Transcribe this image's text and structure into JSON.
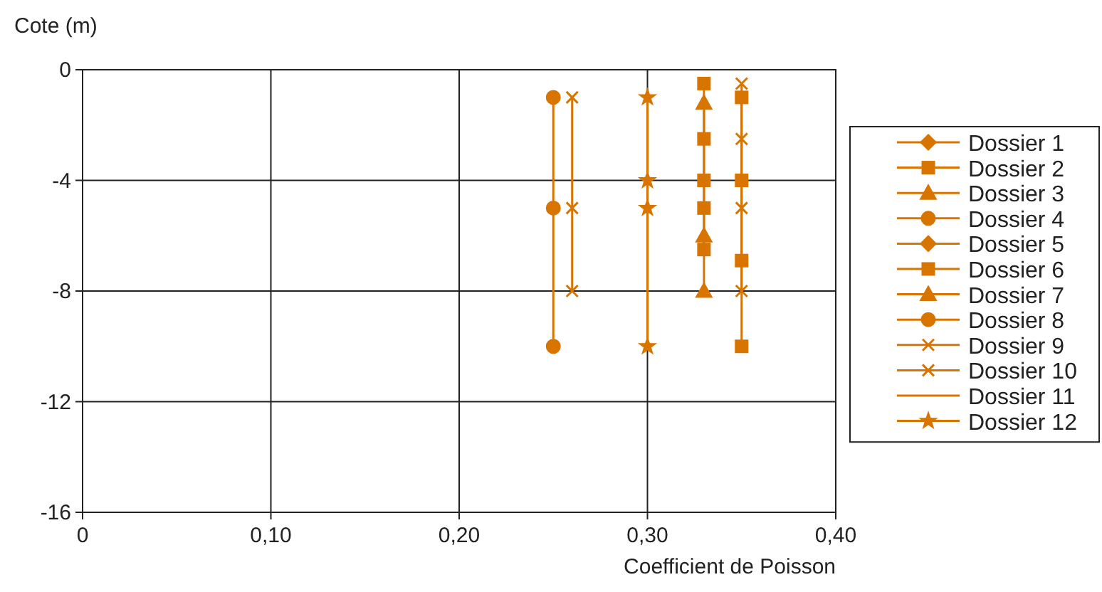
{
  "chart_data": {
    "type": "line",
    "xlabel": "Coefficient de Poisson",
    "ylabel": "Cote (m)",
    "xlim": [
      0,
      0.4
    ],
    "xticks": [
      0,
      {
        "value": 0.1,
        "label": "0,10"
      },
      {
        "value": 0.2,
        "label": "0,20"
      },
      {
        "value": 0.3,
        "label": "0,30"
      },
      {
        "value": 0.4,
        "label": "0,40"
      }
    ],
    "ylim": [
      -16,
      0
    ],
    "yticks": [
      -16,
      -12,
      -8,
      -4,
      0
    ],
    "grid": true,
    "legend": "right",
    "series": [
      {
        "name": "Dossier 1",
        "color": "#d87400",
        "marker": "diamond"
      },
      {
        "name": "Dossier 2",
        "color": "#d87400",
        "marker": "square",
        "x": [
          0.33,
          0.33,
          0.33,
          0.33,
          0.33
        ],
        "values": [
          -0.5,
          -2.5,
          -4,
          -5,
          -6.5
        ]
      },
      {
        "name": "Dossier 3",
        "color": "#d87400",
        "marker": "triangle",
        "x": [
          0.33,
          0.33,
          0.33
        ],
        "values": [
          -1.2,
          -6,
          -8
        ]
      },
      {
        "name": "Dossier 4",
        "color": "#d87400",
        "marker": "circle"
      },
      {
        "name": "Dossier 5",
        "color": "#d87400",
        "marker": "diamond"
      },
      {
        "name": "Dossier 6",
        "color": "#d87400",
        "marker": "square",
        "x": [
          0.35,
          0.35,
          0.35,
          0.35
        ],
        "values": [
          -1,
          -4,
          -6.9,
          -10
        ]
      },
      {
        "name": "Dossier 7",
        "color": "#d87400",
        "marker": "triangle"
      },
      {
        "name": "Dossier 8",
        "color": "#d87400",
        "marker": "circle",
        "x": [
          0.25,
          0.25,
          0.25
        ],
        "values": [
          -1,
          -5,
          -10
        ]
      },
      {
        "name": "Dossier 9",
        "color": "#d87400",
        "marker": "cross",
        "x": [
          0.26,
          0.26,
          0.26
        ],
        "values": [
          -1,
          -5,
          -8
        ]
      },
      {
        "name": "Dossier 10",
        "color": "#d87400",
        "marker": "cross",
        "x": [
          0.35,
          0.35,
          0.35,
          0.35
        ],
        "values": [
          -0.5,
          -2.5,
          -5,
          -8
        ]
      },
      {
        "name": "Dossier 11",
        "color": "#d87400",
        "marker": "none"
      },
      {
        "name": "Dossier 12",
        "color": "#d87400",
        "marker": "star",
        "x": [
          0.3,
          0.3,
          0.3,
          0.3
        ],
        "values": [
          -1,
          -4,
          -5,
          -10
        ]
      }
    ]
  }
}
